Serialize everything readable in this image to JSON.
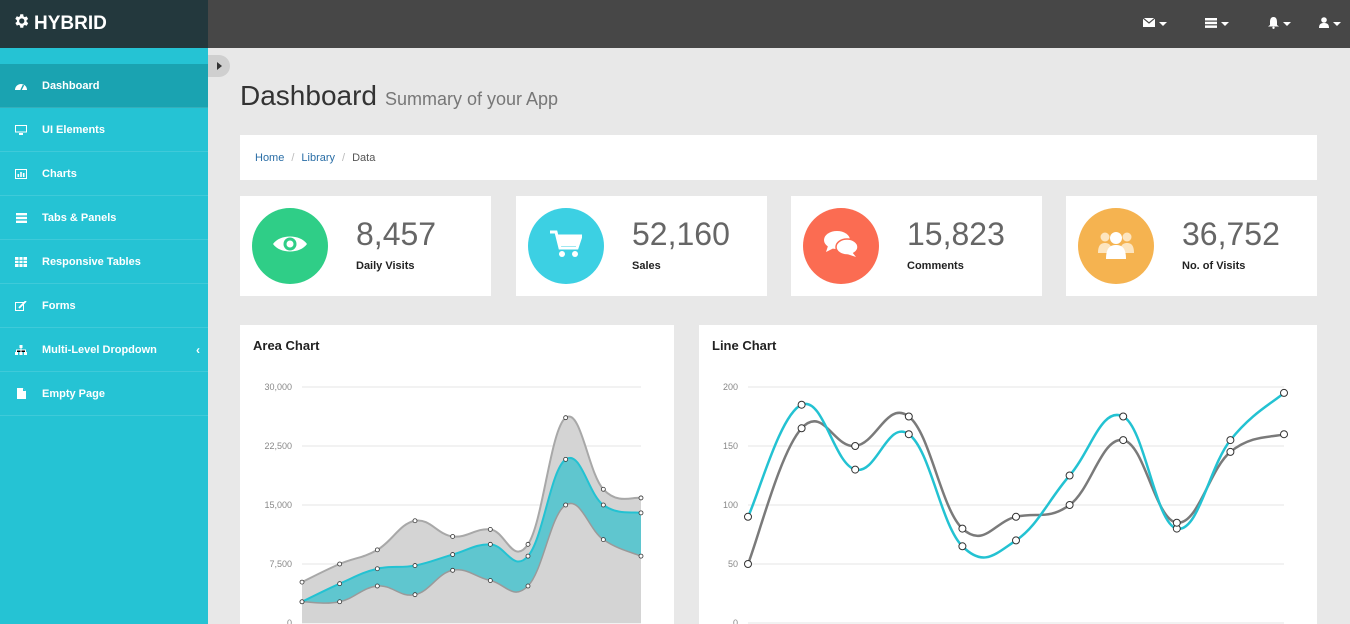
{
  "brand": {
    "name": "HYBRID"
  },
  "topnav": [
    {
      "icon": "envelope-icon"
    },
    {
      "icon": "tasks-icon"
    },
    {
      "icon": "bell-icon"
    },
    {
      "icon": "user-icon"
    }
  ],
  "sidebar": {
    "items": [
      {
        "label": "Dashboard",
        "icon": "dashboard-icon",
        "active": true
      },
      {
        "label": "UI Elements",
        "icon": "desktop-icon"
      },
      {
        "label": "Charts",
        "icon": "bar-chart-icon"
      },
      {
        "label": "Tabs & Panels",
        "icon": "tasks-icon"
      },
      {
        "label": "Responsive Tables",
        "icon": "table-icon"
      },
      {
        "label": "Forms",
        "icon": "edit-icon"
      },
      {
        "label": "Multi-Level Dropdown",
        "icon": "sitemap-icon",
        "chevron": "‹"
      },
      {
        "label": "Empty Page",
        "icon": "file-icon"
      }
    ]
  },
  "page": {
    "title": "Dashboard",
    "subtitle": "Summary of your App"
  },
  "breadcrumb": {
    "home": "Home",
    "library": "Library",
    "current": "Data",
    "separator": "/"
  },
  "stats": [
    {
      "value": "8,457",
      "label": "Daily Visits",
      "color": "#2fce87",
      "icon": "eye-icon"
    },
    {
      "value": "52,160",
      "label": "Sales",
      "color": "#3cd0e3",
      "icon": "shopping-cart-icon"
    },
    {
      "value": "15,823",
      "label": "Comments",
      "color": "#fb6c52",
      "icon": "comments-icon"
    },
    {
      "value": "36,752",
      "label": "No. of Visits",
      "color": "#f5b350",
      "icon": "users-icon"
    }
  ],
  "area_panel": {
    "title": "Area Chart"
  },
  "line_panel": {
    "title": "Line Chart"
  },
  "chart_data": [
    {
      "type": "area",
      "title": "Area Chart",
      "ylim": [
        0,
        30000
      ],
      "yticks": [
        "0",
        "7,500",
        "15,000",
        "22,500",
        "30,000"
      ],
      "grid": true,
      "series": [
        {
          "color": "#23c2d2",
          "values": [
            2700,
            5000,
            6900,
            7300,
            8700,
            10000,
            8500,
            20800,
            15000,
            14000
          ]
        },
        {
          "color": "#9a9a9a",
          "values": [
            2700,
            2700,
            4700,
            3600,
            6700,
            5400,
            4700,
            15000,
            10600,
            8500
          ]
        },
        {
          "color": "#a8a8a8",
          "values": [
            5200,
            7500,
            9300,
            13000,
            11000,
            11900,
            10000,
            26100,
            17000,
            15900
          ]
        }
      ]
    },
    {
      "type": "line",
      "title": "Line Chart",
      "ylim": [
        0,
        200
      ],
      "yticks": [
        "0",
        "50",
        "100",
        "150",
        "200"
      ],
      "grid": true,
      "series": [
        {
          "color": "#23c2d2",
          "values": [
            90,
            185,
            130,
            160,
            65,
            70,
            125,
            175,
            80,
            155,
            195
          ]
        },
        {
          "color": "#7a7a7a",
          "values": [
            50,
            165,
            150,
            175,
            80,
            90,
            100,
            155,
            85,
            145,
            160
          ]
        }
      ]
    }
  ]
}
